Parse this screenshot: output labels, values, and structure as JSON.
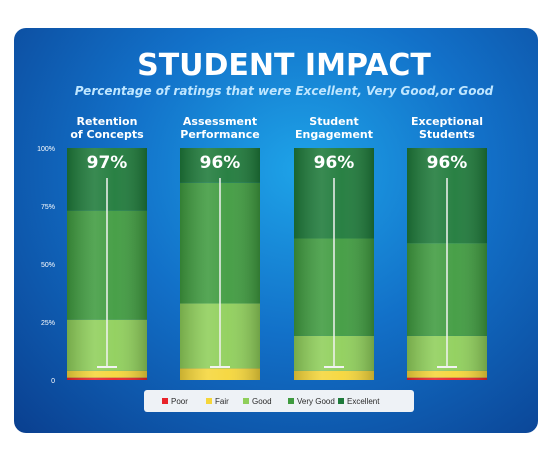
{
  "chart_data": {
    "type": "bar",
    "stacked": true,
    "title": "STUDENT IMPACT",
    "subtitle": "Percentage of ratings that were Excellent, Very Good,or Good",
    "ylim": [
      0,
      100
    ],
    "ytick_labels": [
      "0",
      "25%",
      "50%",
      "75%",
      "100%"
    ],
    "yticks": [
      0,
      25,
      50,
      75,
      100
    ],
    "categories": [
      [
        "Retention",
        "of Concepts"
      ],
      [
        "Assessment",
        "Performance"
      ],
      [
        "Student",
        "Engagement"
      ],
      [
        "Exceptional",
        "Students"
      ]
    ],
    "totals_label": [
      "97%",
      "96%",
      "96%",
      "96%"
    ],
    "series": [
      {
        "name": "Poor",
        "color": "#e8232a",
        "values": [
          1,
          0,
          0,
          1
        ]
      },
      {
        "name": "Fair",
        "color": "#f5d63a",
        "values": [
          3,
          5,
          4,
          3
        ]
      },
      {
        "name": "Good",
        "color": "#8fcf5a",
        "values": [
          22,
          28,
          15,
          15
        ]
      },
      {
        "name": "Very Good",
        "color": "#3f9b3f",
        "values": [
          47,
          52,
          42,
          40
        ]
      },
      {
        "name": "Excellent",
        "color": "#1e7a3a",
        "values": [
          27,
          15,
          39,
          41
        ]
      }
    ],
    "legend_position": "bottom",
    "grid": false
  }
}
